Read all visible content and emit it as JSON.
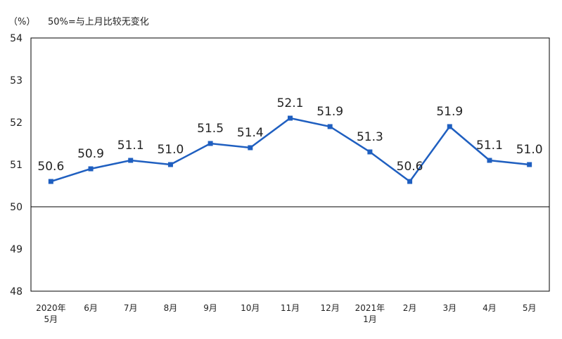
{
  "header": {
    "unit": "（%）",
    "note": "50%=与上月比较无变化"
  },
  "colors": {
    "line": "#1f5fc0",
    "frame": "#000000",
    "text": "#222222"
  },
  "chart_data": {
    "type": "line",
    "title": "",
    "xlabel": "",
    "ylabel": "",
    "ylim": [
      48,
      54
    ],
    "yticks": [
      48,
      49,
      50,
      51,
      52,
      53,
      54
    ],
    "reference_line": 50,
    "grid": false,
    "categories": [
      [
        "2020年",
        "5月"
      ],
      [
        "6月"
      ],
      [
        "7月"
      ],
      [
        "8月"
      ],
      [
        "9月"
      ],
      [
        "10月"
      ],
      [
        "11月"
      ],
      [
        "12月"
      ],
      [
        "2021年",
        "1月"
      ],
      [
        "2月"
      ],
      [
        "3月"
      ],
      [
        "4月"
      ],
      [
        "5月"
      ]
    ],
    "series": [
      {
        "values": [
          50.6,
          50.9,
          51.1,
          51.0,
          51.5,
          51.4,
          52.1,
          51.9,
          51.3,
          50.6,
          51.9,
          51.1,
          51.0
        ],
        "labels": [
          "50.6",
          "50.9",
          "51.1",
          "51.0",
          "51.5",
          "51.4",
          "52.1",
          "51.9",
          "51.3",
          "50.6",
          "51.9",
          "51.1",
          "51.0"
        ]
      }
    ]
  }
}
